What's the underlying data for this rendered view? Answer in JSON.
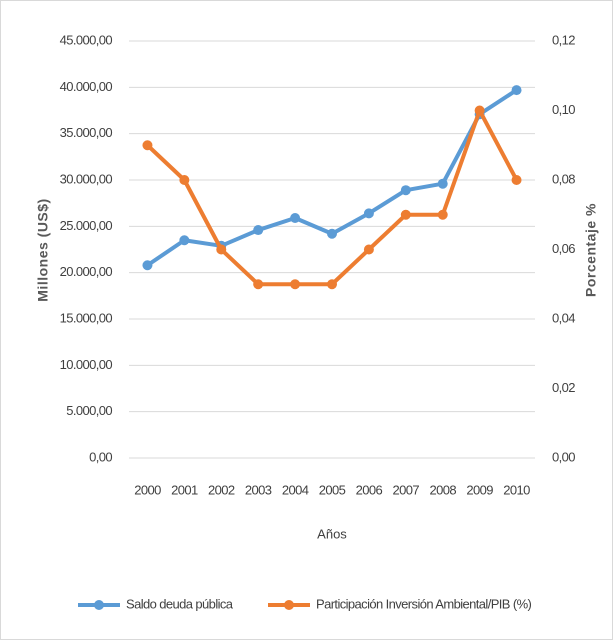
{
  "chart_data": {
    "type": "line",
    "xlabel": "Años",
    "ylabel": "Millones (US$)",
    "y2label": "Porcentaje %",
    "categories": [
      "2000",
      "2001",
      "2002",
      "2003",
      "2004",
      "2005",
      "2006",
      "2007",
      "2008",
      "2009",
      "2010"
    ],
    "series": [
      {
        "name": "Saldo deuda pública",
        "color": "#5b9bd5",
        "axis": "y",
        "values": [
          20800,
          23500,
          22900,
          24600,
          25900,
          24200,
          26400,
          28900,
          29600,
          37100,
          39700
        ]
      },
      {
        "name": "Participación Inversión Ambiental/PIB (%)",
        "color": "#ed7d31",
        "axis": "y2",
        "values": [
          0.09,
          0.08,
          0.06,
          0.05,
          0.05,
          0.05,
          0.06,
          0.07,
          0.07,
          0.1,
          0.08
        ]
      }
    ],
    "ylim": [
      0,
      45000
    ],
    "yticks": [
      {
        "value": 0,
        "label": "0,00"
      },
      {
        "value": 5000,
        "label": "5.000,00"
      },
      {
        "value": 10000,
        "label": "10.000,00"
      },
      {
        "value": 15000,
        "label": "15.000,00"
      },
      {
        "value": 20000,
        "label": "20.000,00"
      },
      {
        "value": 25000,
        "label": "25.000,00"
      },
      {
        "value": 30000,
        "label": "30.000,00"
      },
      {
        "value": 35000,
        "label": "35.000,00"
      },
      {
        "value": 40000,
        "label": "40.000,00"
      },
      {
        "value": 45000,
        "label": "45.000,00"
      }
    ],
    "y2lim": [
      0,
      0.12
    ],
    "y2ticks": [
      {
        "value": 0,
        "label": "0,00"
      },
      {
        "value": 0.02,
        "label": "0,02"
      },
      {
        "value": 0.04,
        "label": "0,04"
      },
      {
        "value": 0.06,
        "label": "0,06"
      },
      {
        "value": 0.08,
        "label": "0,08"
      },
      {
        "value": 0.1,
        "label": "0,10"
      },
      {
        "value": 0.12,
        "label": "0,12"
      }
    ],
    "grid": true,
    "legend": "bottom"
  }
}
